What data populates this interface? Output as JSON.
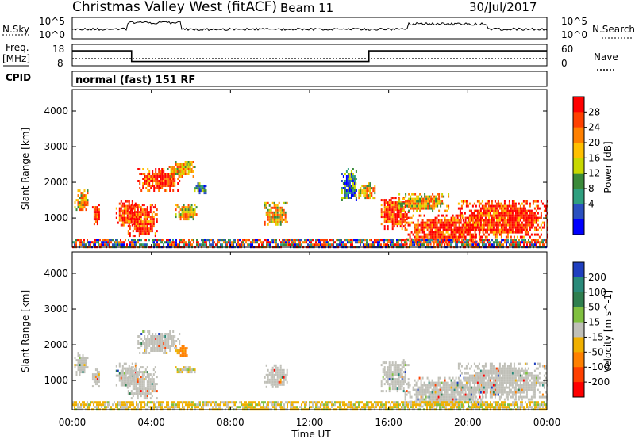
{
  "header": {
    "station": "Christmas Valley West (fitACF)",
    "beam": "Beam 11",
    "date": "30/Jul/2017"
  },
  "nsky_panel": {
    "left_label": "N.Sky",
    "right_label": "N.Search",
    "tick_top": "10^5",
    "tick_bottom": "10^0"
  },
  "freq_panel": {
    "label_line1": "Freq.",
    "label_line2": "[MHz]",
    "left_ticks": [
      "18",
      "8"
    ],
    "right_ticks": [
      "60",
      "0"
    ],
    "right_label": "Nave"
  },
  "cpid_panel": {
    "label": "CPID",
    "program": "normal (fast) 151 RF"
  },
  "time_axis": {
    "ticks": [
      "00:00",
      "04:00",
      "08:00",
      "12:00",
      "16:00",
      "20:00",
      "00:00"
    ],
    "label": "Time UT"
  },
  "range_axis": {
    "label": "Slant Range [km]",
    "ticks": [
      "1000",
      "2000",
      "3000",
      "4000"
    ]
  },
  "power_scale": {
    "label": "Power [dB]",
    "ticks": [
      "28",
      "24",
      "20",
      "16",
      "12",
      "8",
      "4"
    ],
    "colors": [
      "#ff0000",
      "#ff4000",
      "#ff8000",
      "#ffc000",
      "#c8d800",
      "#3a8a3a",
      "#2f9f7f",
      "#2a50c0",
      "#0000ff"
    ]
  },
  "velocity_scale": {
    "label": "Velocity [m s^-1]",
    "ticks": [
      "200",
      "100",
      "50",
      "15",
      "-15",
      "-50",
      "-100",
      "-200"
    ],
    "colors": [
      "#1f3fbf",
      "#2a8a7a",
      "#2f7f4f",
      "#80c040",
      "#c0c0b8",
      "#f0b000",
      "#ff8000",
      "#ff4000",
      "#ff0000"
    ]
  },
  "chart_data": [
    {
      "type": "line",
      "title": "N.Sky / N.Search",
      "x_range_hours": [
        0,
        24
      ],
      "y_scale": "log",
      "ylim": [
        1,
        100000
      ]
    },
    {
      "type": "line",
      "title": "Freq. / Nave",
      "x_range_hours": [
        0,
        24
      ],
      "freq_mhz_steps": [
        {
          "from_h": 0,
          "to_h": 3.0,
          "value": 15
        },
        {
          "from_h": 3.0,
          "to_h": 15.0,
          "value": 10
        },
        {
          "from_h": 15.0,
          "to_h": 24,
          "value": 15
        }
      ],
      "nave": 20,
      "ylim_freq": [
        8,
        18
      ],
      "ylim_nave": [
        0,
        60
      ]
    },
    {
      "type": "heatmap",
      "title": "Power",
      "xlabel": "Time UT",
      "ylabel": "Slant Range [km]",
      "x_range_hours": [
        0,
        24
      ],
      "ylim_km": [
        180,
        4600
      ],
      "colorbar_label": "Power [dB]",
      "colorbar_range_db": [
        0,
        32
      ],
      "echo_regions": [
        {
          "t0": 0.1,
          "t1": 0.8,
          "r0": 1200,
          "r1": 1800,
          "level": "moderate"
        },
        {
          "t0": 1.0,
          "t1": 1.4,
          "r0": 850,
          "r1": 1400,
          "level": "strong"
        },
        {
          "t0": 2.2,
          "t1": 3.2,
          "r0": 800,
          "r1": 1500,
          "level": "strong"
        },
        {
          "t0": 2.8,
          "t1": 4.3,
          "r0": 500,
          "r1": 1400,
          "level": "strong"
        },
        {
          "t0": 3.3,
          "t1": 5.4,
          "r0": 1800,
          "r1": 2400,
          "level": "strong"
        },
        {
          "t0": 4.8,
          "t1": 6.2,
          "r0": 2200,
          "r1": 2600,
          "level": "moderate"
        },
        {
          "t0": 5.2,
          "t1": 6.3,
          "r0": 950,
          "r1": 1400,
          "level": "moderate"
        },
        {
          "t0": 6.0,
          "t1": 6.8,
          "r0": 1700,
          "r1": 2000,
          "level": "weak"
        },
        {
          "t0": 9.7,
          "t1": 10.9,
          "r0": 800,
          "r1": 1450,
          "level": "moderate"
        },
        {
          "t0": 13.6,
          "t1": 14.4,
          "r0": 1500,
          "r1": 2400,
          "level": "weak"
        },
        {
          "t0": 14.3,
          "t1": 15.4,
          "r0": 1550,
          "r1": 2000,
          "level": "moderate"
        },
        {
          "t0": 15.6,
          "t1": 17.0,
          "r0": 700,
          "r1": 1600,
          "level": "strong"
        },
        {
          "t0": 16.5,
          "t1": 19.0,
          "r0": 1200,
          "r1": 1700,
          "level": "moderate"
        },
        {
          "t0": 16.8,
          "t1": 20.8,
          "r0": 250,
          "r1": 1100,
          "level": "strong"
        },
        {
          "t0": 19.5,
          "t1": 24.0,
          "r0": 500,
          "r1": 1500,
          "level": "strong"
        },
        {
          "t0": 0.0,
          "t1": 24.0,
          "r0": 180,
          "r1": 420,
          "level": "ground"
        }
      ]
    },
    {
      "type": "heatmap",
      "title": "Velocity",
      "xlabel": "Time UT",
      "ylabel": "Slant Range [km]",
      "x_range_hours": [
        0,
        24
      ],
      "ylim_km": [
        180,
        4600
      ],
      "colorbar_label": "Velocity [m s^-1]",
      "colorbar_range_ms": [
        -250,
        250
      ],
      "echo_regions": [
        {
          "t0": 0.1,
          "t1": 0.8,
          "r0": 1200,
          "r1": 1800,
          "v": 0
        },
        {
          "t0": 1.0,
          "t1": 1.4,
          "r0": 850,
          "r1": 1400,
          "v": 0
        },
        {
          "t0": 2.2,
          "t1": 3.2,
          "r0": 800,
          "r1": 1500,
          "v": 0
        },
        {
          "t0": 2.8,
          "t1": 4.3,
          "r0": 500,
          "r1": 1400,
          "v": 0
        },
        {
          "t0": 3.3,
          "t1": 5.4,
          "r0": 1800,
          "r1": 2400,
          "v": 0
        },
        {
          "t0": 5.2,
          "t1": 5.8,
          "r0": 1700,
          "r1": 2000,
          "v": -60
        },
        {
          "t0": 5.2,
          "t1": 6.3,
          "r0": 1250,
          "r1": 1400,
          "v": -30
        },
        {
          "t0": 9.7,
          "t1": 10.9,
          "r0": 800,
          "r1": 1450,
          "v": 0
        },
        {
          "t0": 15.6,
          "t1": 17.0,
          "r0": 700,
          "r1": 1600,
          "v": 0
        },
        {
          "t0": 16.8,
          "t1": 20.8,
          "r0": 250,
          "r1": 1100,
          "v": 0
        },
        {
          "t0": 19.5,
          "t1": 24.0,
          "r0": 500,
          "r1": 1500,
          "v": 0
        },
        {
          "t0": 0.0,
          "t1": 24.0,
          "r0": 180,
          "r1": 420,
          "v": -20
        }
      ]
    }
  ]
}
